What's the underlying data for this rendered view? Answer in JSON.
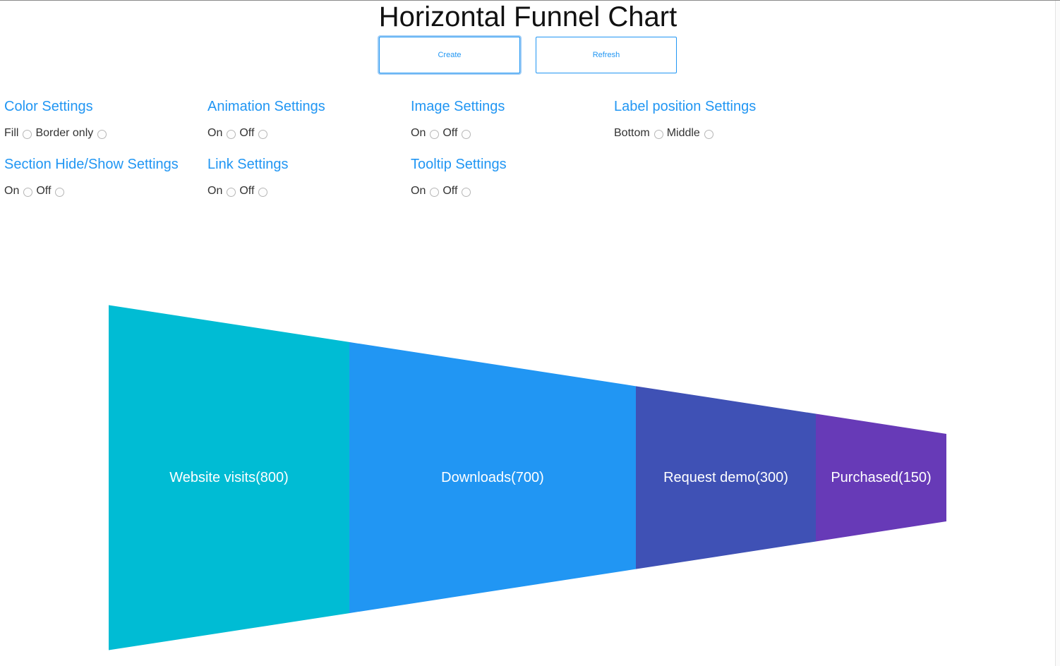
{
  "page": {
    "title": "Horizontal Funnel Chart"
  },
  "buttons": {
    "create": "Create",
    "refresh": "Refresh"
  },
  "settings": {
    "color": {
      "title": "Color Settings",
      "options": [
        "Fill",
        "Border only"
      ]
    },
    "animation": {
      "title": "Animation Settings",
      "options": [
        "On",
        "Off"
      ]
    },
    "image": {
      "title": "Image Settings",
      "options": [
        "On",
        "Off"
      ]
    },
    "label_position": {
      "title": "Label position Settings",
      "options": [
        "Bottom",
        "Middle"
      ]
    },
    "section_hide_show": {
      "title": "Section Hide/Show Settings",
      "options": [
        "On",
        "Off"
      ]
    },
    "link": {
      "title": "Link Settings",
      "options": [
        "On",
        "Off"
      ]
    },
    "tooltip": {
      "title": "Tooltip Settings",
      "options": [
        "On",
        "Off"
      ]
    }
  },
  "chart_data": {
    "type": "funnel",
    "orientation": "horizontal",
    "categories": [
      "Website visits",
      "Downloads",
      "Request demo",
      "Purchased"
    ],
    "values": [
      800,
      700,
      300,
      150
    ],
    "labels": [
      "Website visits(800)",
      "Downloads(700)",
      "Request demo(300)",
      "Purchased(150)"
    ],
    "colors": [
      "#00bcd4",
      "#2196f3",
      "#3f51b5",
      "#673ab7"
    ]
  }
}
